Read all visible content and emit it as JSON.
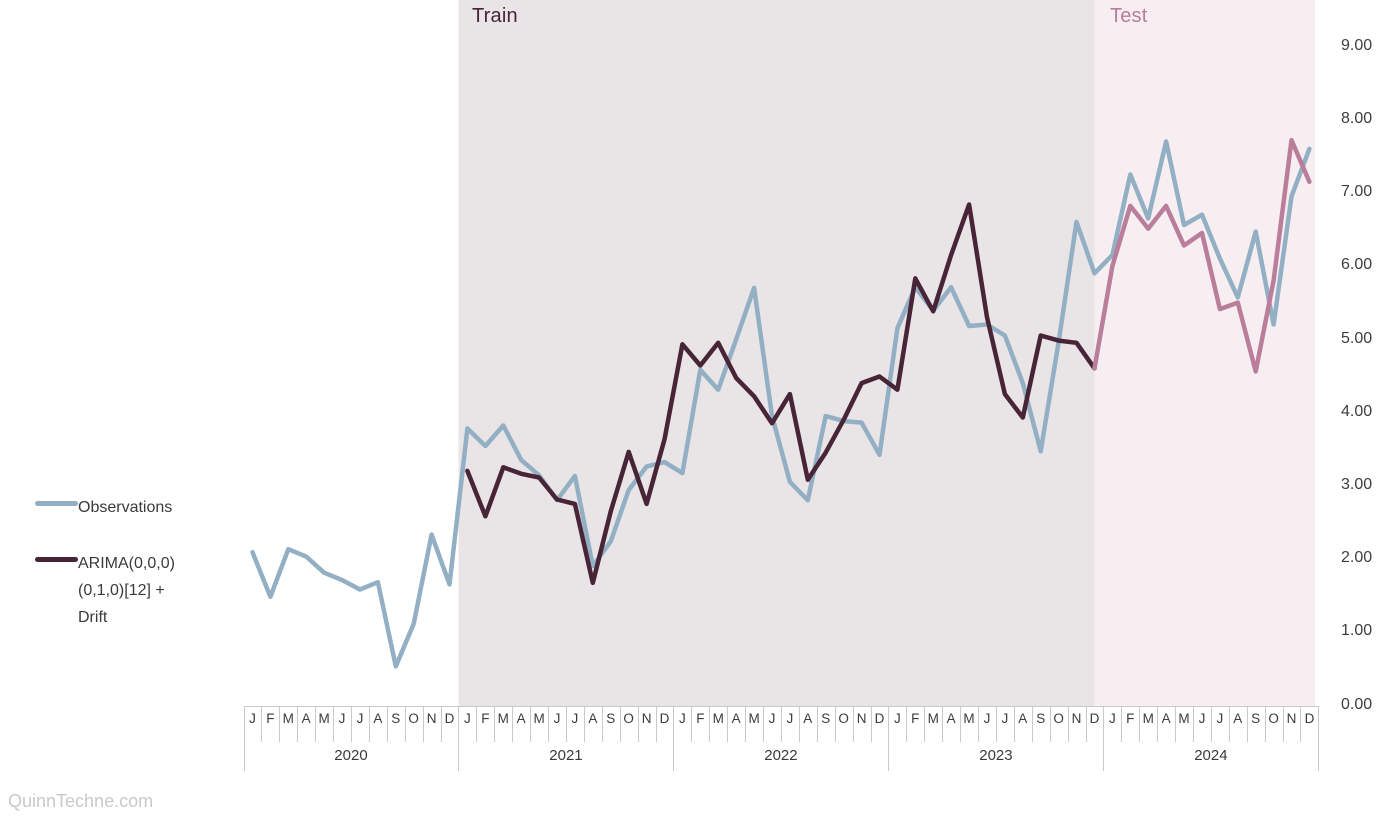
{
  "watermark": "QuinnTechne.com",
  "regions": {
    "train": {
      "label": "Train",
      "band_color": "#e9e4e6",
      "label_color": "#45243b"
    },
    "test": {
      "label": "Test",
      "band_color": "#f6eef1",
      "label_color": "#b87c9c"
    }
  },
  "legend": {
    "items": [
      {
        "label": "Observations",
        "label_lines": [
          "Observations"
        ],
        "color": "#92afc3"
      },
      {
        "label": "ARIMA(0,0,0)(0,1,0)[12] + Drift",
        "label_lines": [
          "ARIMA(0,0,0)",
          "(0,1,0)[12] +",
          "Drift"
        ],
        "color": "#482437"
      }
    ]
  },
  "chart_data": {
    "type": "line",
    "title": "",
    "xlabel": "",
    "ylabel": "",
    "ylim": [
      0,
      9
    ],
    "grid": false,
    "legend_position": "left",
    "y_ticks": [
      "0.00",
      "1.00",
      "2.00",
      "3.00",
      "4.00",
      "5.00",
      "6.00",
      "7.00",
      "8.00",
      "9.00"
    ],
    "month_letters": [
      "J",
      "F",
      "M",
      "A",
      "M",
      "J",
      "J",
      "A",
      "S",
      "O",
      "N",
      "D"
    ],
    "years": [
      "2020",
      "2021",
      "2022",
      "2023",
      "2024"
    ],
    "regions": [
      {
        "name": "Train",
        "covers": "2021-01 to 2023-12"
      },
      {
        "name": "Test",
        "covers": "2024-01 to 2024-12"
      }
    ],
    "series": [
      {
        "name": "Observations",
        "color": "#92afc3",
        "start_month_index": 0,
        "values": [
          2.04,
          1.43,
          2.08,
          1.98,
          1.76,
          1.66,
          1.53,
          1.63,
          0.48,
          1.06,
          2.28,
          1.6,
          3.73,
          3.49,
          3.77,
          3.3,
          3.09,
          2.75,
          3.08,
          1.85,
          2.19,
          2.89,
          3.21,
          3.27,
          3.12,
          4.53,
          4.26,
          4.95,
          5.65,
          3.9,
          3.0,
          2.75,
          3.9,
          3.83,
          3.81,
          3.37,
          5.1,
          5.66,
          5.34,
          5.66,
          5.13,
          5.15,
          5.0,
          4.35,
          3.42,
          4.91,
          6.55,
          5.85,
          6.1,
          7.2,
          6.6,
          7.65,
          6.51,
          6.65,
          6.05,
          5.52,
          6.42,
          5.15,
          6.9,
          7.55
        ]
      },
      {
        "name": "ARIMA fit (train)",
        "color": "#482437",
        "start_month_index": 12,
        "values": [
          3.15,
          2.53,
          3.2,
          3.11,
          3.06,
          2.76,
          2.7,
          1.62,
          2.6,
          3.41,
          2.7,
          3.58,
          4.88,
          4.59,
          4.9,
          4.42,
          4.17,
          3.8,
          4.2,
          3.03,
          3.4,
          3.85,
          4.35,
          4.44,
          4.26,
          5.78,
          5.33,
          6.1,
          6.79,
          5.25,
          4.2,
          3.88,
          5.0,
          4.93,
          4.9,
          4.55
        ]
      },
      {
        "name": "ARIMA forecast (test)",
        "color": "#bb7e9a",
        "start_month_index": 48,
        "connects_from_previous_series": true,
        "values": [
          5.95,
          6.77,
          6.46,
          6.77,
          6.23,
          6.4,
          5.36,
          5.45,
          4.51,
          5.75,
          7.67,
          7.1
        ]
      }
    ]
  }
}
